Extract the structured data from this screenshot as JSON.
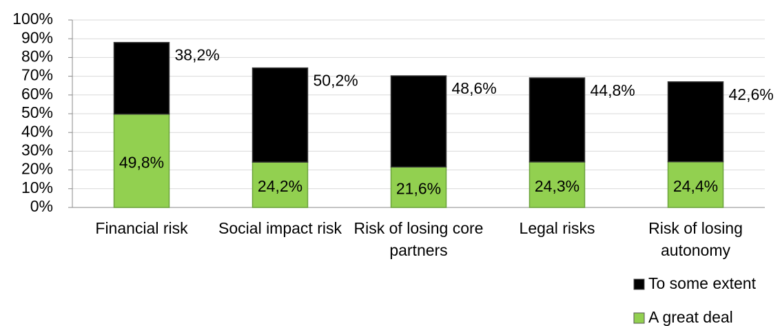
{
  "chart_data": {
    "type": "bar",
    "stacked": true,
    "categories": [
      "Financial risk",
      "Social impact risk",
      "Risk of losing core partners",
      "Legal risks",
      "Risk of losing autonomy"
    ],
    "series": [
      {
        "name": "A great deal",
        "color": "#92d050",
        "values": [
          49.8,
          24.2,
          21.6,
          24.3,
          24.4
        ],
        "value_labels": [
          "49,8%",
          "24,2%",
          "21,6%",
          "24,3%",
          "24,4%"
        ]
      },
      {
        "name": "To some extent",
        "color": "#000000",
        "values": [
          38.2,
          50.2,
          48.6,
          44.8,
          42.6
        ],
        "value_labels": [
          "38,2%",
          "50,2%",
          "48,6%",
          "44,8%",
          "42,6%"
        ]
      }
    ],
    "ylim": [
      0,
      100
    ],
    "yticks": [
      {
        "value": 0,
        "label": "0%"
      },
      {
        "value": 10,
        "label": "10%"
      },
      {
        "value": 20,
        "label": "20%"
      },
      {
        "value": 30,
        "label": "30%"
      },
      {
        "value": 40,
        "label": "40%"
      },
      {
        "value": 50,
        "label": "50%"
      },
      {
        "value": 60,
        "label": "60%"
      },
      {
        "value": 70,
        "label": "70%"
      },
      {
        "value": 80,
        "label": "80%"
      },
      {
        "value": 90,
        "label": "90%"
      },
      {
        "value": 100,
        "label": "100%"
      }
    ],
    "grid": true,
    "legend": "bottom-right"
  }
}
